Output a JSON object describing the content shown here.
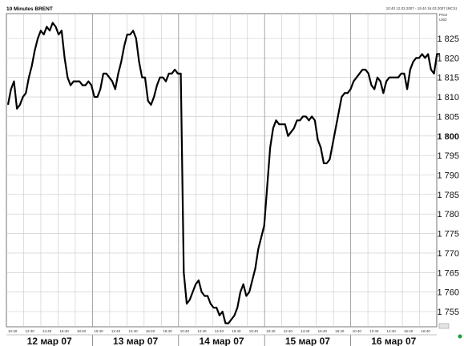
{
  "header": {
    "title": "10 Minutes BRENT",
    "range": "10:40 12.03.2007 - 19:40 16.03.2007 (MCS)",
    "legend": "Line, G.BTO 16:40 16.03.2007, 1 821.36"
  },
  "axis_caption": {
    "line1": "Price",
    "line2": "USD"
  },
  "colors": {
    "line": "#000000",
    "grid": "#c8c8c8",
    "frame": "#777777",
    "dot": "#1a9e3a"
  },
  "chart_data": {
    "type": "line",
    "title": "10 Minutes BRENT",
    "ylim": [
      1751,
      1830
    ],
    "y_ticks": [
      {
        "value": 1825,
        "label": "1 825"
      },
      {
        "value": 1820,
        "label": "1 820"
      },
      {
        "value": 1815,
        "label": "1 815"
      },
      {
        "value": 1810,
        "label": "1 810"
      },
      {
        "value": 1805,
        "label": "1 805"
      },
      {
        "value": 1800,
        "label": "1 800"
      },
      {
        "value": 1795,
        "label": "1 795"
      },
      {
        "value": 1790,
        "label": "1 790"
      },
      {
        "value": 1785,
        "label": "1 785"
      },
      {
        "value": 1780,
        "label": "1 780"
      },
      {
        "value": 1775,
        "label": "1 775"
      },
      {
        "value": 1770,
        "label": "1 770"
      },
      {
        "value": 1765,
        "label": "1 765"
      },
      {
        "value": 1760,
        "label": "1 760"
      },
      {
        "value": 1755,
        "label": "1 755"
      }
    ],
    "days": [
      "12 мар 07",
      "13 мар 07",
      "14 мар 07",
      "15 мар 07",
      "16 мар 07"
    ],
    "x_ticks": [
      "10:40",
      "12:40",
      "14:40",
      "16:40",
      "18:40"
    ],
    "last_value_label": "1 821.36",
    "series": [
      {
        "values": [
          1808,
          1812,
          1814,
          1807,
          1808,
          1810,
          1811,
          1815,
          1818,
          1822,
          1825,
          1827,
          1826,
          1828,
          1827,
          1829,
          1828,
          1826,
          1827,
          1820,
          1815,
          1813,
          1814,
          1814,
          1814,
          1813,
          1813,
          1814,
          1813,
          1810,
          1810,
          1812,
          1816,
          1816,
          1815,
          1814,
          1812,
          1816,
          1819,
          1823,
          1826,
          1826,
          1827,
          1825,
          1819,
          1815,
          1815,
          1809,
          1808,
          1810,
          1813,
          1815,
          1815,
          1814,
          1816,
          1816,
          1817,
          1816,
          1816,
          1765,
          1757,
          1758,
          1760,
          1762,
          1763,
          1760,
          1759,
          1759,
          1757,
          1756,
          1756,
          1754,
          1755,
          1752,
          1752,
          1753,
          1754,
          1756,
          1760,
          1762,
          1759,
          1760,
          1763,
          1766,
          1771,
          1774,
          1777,
          1787,
          1797,
          1802,
          1804,
          1803,
          1803,
          1803,
          1800,
          1801,
          1802,
          1804,
          1804,
          1805,
          1805,
          1804,
          1805,
          1804,
          1799,
          1797,
          1793,
          1793,
          1794,
          1798,
          1802,
          1806,
          1810,
          1811,
          1811,
          1812,
          1814,
          1815,
          1816,
          1817,
          1817,
          1816,
          1813,
          1812,
          1815,
          1814,
          1811,
          1814,
          1815,
          1815,
          1815,
          1815,
          1816,
          1816,
          1812,
          1817,
          1819,
          1820,
          1820,
          1821,
          1820,
          1821,
          1817,
          1816,
          1821,
          1821
        ]
      }
    ]
  }
}
